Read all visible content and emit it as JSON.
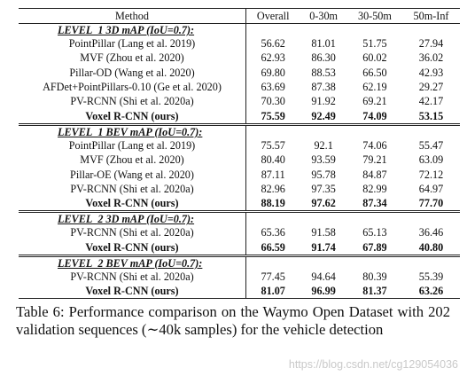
{
  "table": {
    "header": [
      "Method",
      "Overall",
      "0-30m",
      "30-50m",
      "50m-Inf"
    ],
    "sections": [
      {
        "title": "LEVEL_1 3D mAP (IoU=0.7):",
        "rows": [
          {
            "method": "PointPillar (Lang et al. 2019)",
            "values": [
              "56.62",
              "81.01",
              "51.75",
              "27.94"
            ],
            "ours": false
          },
          {
            "method": "MVF (Zhou et al. 2020)",
            "values": [
              "62.93",
              "86.30",
              "60.02",
              "36.02"
            ],
            "ours": false
          },
          {
            "method": "Pillar-OD (Wang et al. 2020)",
            "values": [
              "69.80",
              "88.53",
              "66.50",
              "42.93"
            ],
            "ours": false
          },
          {
            "method": "AFDet+PointPillars-0.10 (Ge et al. 2020)",
            "values": [
              "63.69",
              "87.38",
              "62.19",
              "29.27"
            ],
            "ours": false
          },
          {
            "method": "PV-RCNN (Shi et al. 2020a)",
            "values": [
              "70.30",
              "91.92",
              "69.21",
              "42.17"
            ],
            "ours": false
          },
          {
            "method": "Voxel R-CNN (ours)",
            "values": [
              "75.59",
              "92.49",
              "74.09",
              "53.15"
            ],
            "ours": true
          }
        ]
      },
      {
        "title": "LEVEL_1 BEV mAP (IoU=0.7):",
        "rows": [
          {
            "method": "PointPillar (Lang et al. 2019)",
            "values": [
              "75.57",
              "92.1",
              "74.06",
              "55.47"
            ],
            "ours": false
          },
          {
            "method": "MVF (Zhou et al. 2020)",
            "values": [
              "80.40",
              "93.59",
              "79.21",
              "63.09"
            ],
            "ours": false
          },
          {
            "method": "Pillar-OE (Wang et al. 2020)",
            "values": [
              "87.11",
              "95.78",
              "84.87",
              "72.12"
            ],
            "ours": false
          },
          {
            "method": "PV-RCNN (Shi et al. 2020a)",
            "values": [
              "82.96",
              "97.35",
              "82.99",
              "64.97"
            ],
            "ours": false
          },
          {
            "method": "Voxel R-CNN (ours)",
            "values": [
              "88.19",
              "97.62",
              "87.34",
              "77.70"
            ],
            "ours": true
          }
        ]
      },
      {
        "title": "LEVEL_2 3D mAP (IoU=0.7):",
        "rows": [
          {
            "method": "PV-RCNN (Shi et al. 2020a)",
            "values": [
              "65.36",
              "91.58",
              "65.13",
              "36.46"
            ],
            "ours": false
          },
          {
            "method": "Voxel R-CNN (ours)",
            "values": [
              "66.59",
              "91.74",
              "67.89",
              "40.80"
            ],
            "ours": true
          }
        ]
      },
      {
        "title": "LEVEL_2 BEV mAP (IoU=0.7):",
        "rows": [
          {
            "method": "PV-RCNN (Shi et al. 2020a)",
            "values": [
              "77.45",
              "94.64",
              "80.39",
              "55.39"
            ],
            "ours": false
          },
          {
            "method": "Voxel R-CNN (ours)",
            "values": [
              "81.07",
              "96.99",
              "81.37",
              "63.26"
            ],
            "ours": true
          }
        ]
      }
    ]
  },
  "caption": "Table 6: Performance comparison on the Waymo Open Dataset with 202 validation sequences (∼40k samples) for the vehicle detection",
  "watermark": "https://blog.csdn.net/cg129054036"
}
